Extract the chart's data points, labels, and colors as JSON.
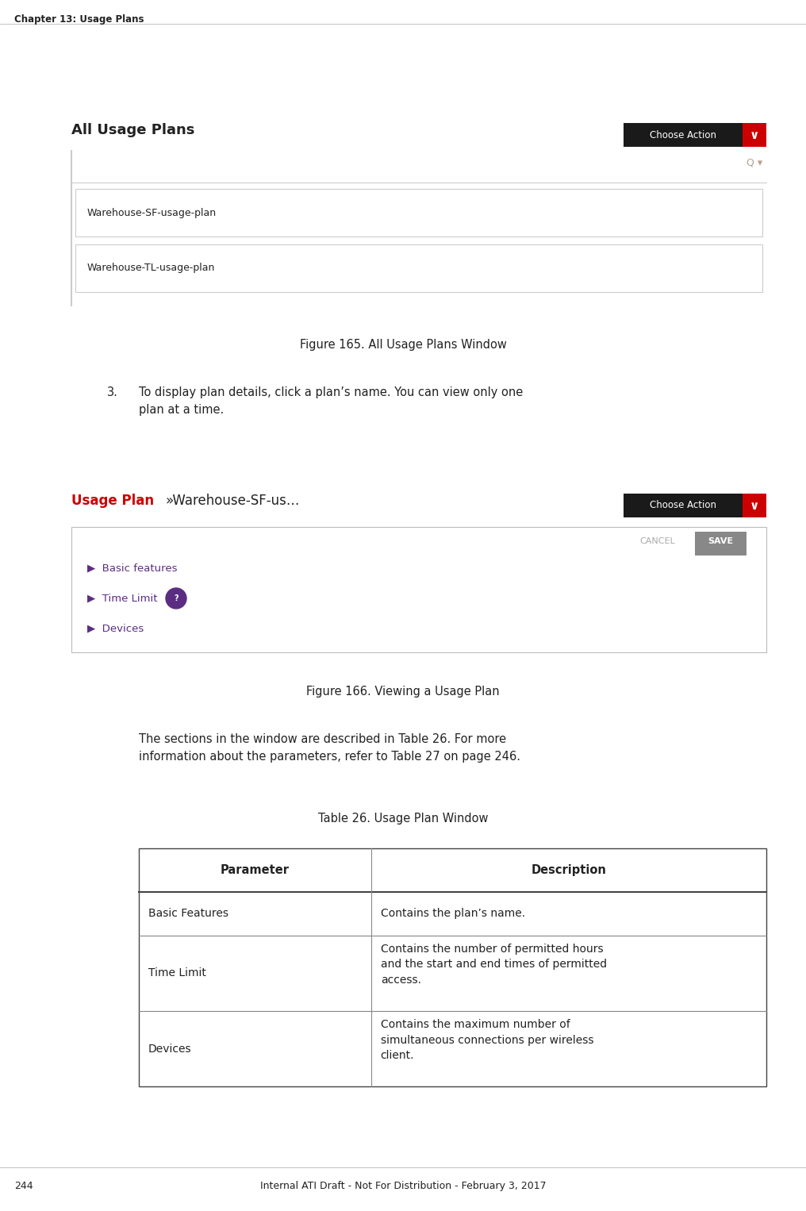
{
  "page_width": 10.16,
  "page_height": 15.26,
  "bg_color": "#ffffff",
  "header_text": "Chapter 13: Usage Plans",
  "header_fontsize": 8.5,
  "footer_text": "Internal ATI Draft - Not For Distribution - February 3, 2017",
  "footer_fontsize": 9,
  "page_number": "244",
  "figure1_title_bold": "All Usage Plans",
  "figure1_button_text": "Choose Action",
  "figure1_item1": "Warehouse-SF-usage-plan",
  "figure1_item2": "Warehouse-TL-usage-plan",
  "figure1_caption": "Figure 165. All Usage Plans Window",
  "step3_num": "3.",
  "step3_text": "To display plan details, click a plan’s name. You can view only one\nplan at a time.",
  "figure2_title_bold": "Usage Plan",
  "figure2_title_rest": "»Warehouse-SF-us…",
  "figure2_button_text": "Choose Action",
  "figure2_cancel": "CANCEL",
  "figure2_save": "SAVE",
  "figure2_item1": "Basic features",
  "figure2_item2": "Time Limit",
  "figure2_item3": "Devices",
  "figure2_caption": "Figure 166. Viewing a Usage Plan",
  "body_text1": "The sections in the window are described in Table 26. For more\ninformation about the parameters, refer to Table 27 on page 246.",
  "table_title": "Table 26. Usage Plan Window",
  "table_header_param": "Parameter",
  "table_header_desc": "Description",
  "row1_param": "Basic Features",
  "row1_desc": "Contains the plan’s name.",
  "row2_param": "Time Limit",
  "row2_desc": "Contains the number of permitted hours\nand the start and end times of permitted\naccess.",
  "row3_param": "Devices",
  "row3_desc": "Contains the maximum number of\nsimultaneous connections per wireless\nclient.",
  "red_color": "#cc0000",
  "dark_color": "#222222",
  "link_color": "#5a2d82",
  "button_bg": "#1a1a1a",
  "button_red": "#cc0000",
  "save_bg": "#888888",
  "border_color": "#bbbbbb",
  "light_border": "#cccccc",
  "search_color": "#b8a090",
  "cancel_color": "#aaaaaa",
  "left_border_color": "#cccccc"
}
